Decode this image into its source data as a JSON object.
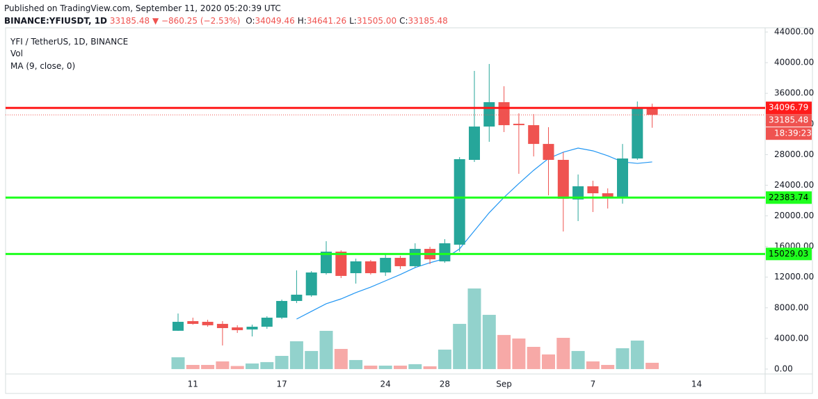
{
  "chart_data": {
    "type": "candlestick",
    "header": {
      "published": "Published on TradingView.com, September 11, 2020 05:20:39 UTC",
      "symbol": "BINANCE:YFIUSDT, 1D",
      "last": "33185.48",
      "change": "▼ −860.25 (−2.53%)",
      "ohlc": [
        {
          "label": "O:",
          "value": "34049.46"
        },
        {
          "label": "H:",
          "value": "34641.26"
        },
        {
          "label": "L:",
          "value": "31505.00"
        },
        {
          "label": "C:",
          "value": "33185.48"
        }
      ]
    },
    "categories": [
      null,
      "11",
      null,
      null,
      null,
      null,
      null,
      "17",
      null,
      null,
      null,
      null,
      null,
      null,
      "24",
      null,
      null,
      null,
      "28",
      null,
      null,
      null,
      "Sep",
      null,
      null,
      null,
      null,
      null,
      "7",
      null,
      null,
      null,
      null,
      null,
      null,
      "14"
    ],
    "series": [
      {
        "name": "YFI / TetherUS, 1D, BINANCE",
        "open": [
          5000,
          6260,
          6170,
          5900,
          5440,
          5170,
          5530,
          6710,
          8890,
          9620,
          12520,
          15330,
          12520,
          14060,
          12610,
          14520,
          13430,
          15690,
          14060,
          16240,
          27310,
          31660,
          34840,
          32020,
          31840,
          29390,
          27310,
          22140,
          23860,
          22950,
          22500,
          27490,
          34049.46,
          null,
          null,
          null
        ],
        "high": [
          7260,
          6710,
          6440,
          6260,
          5720,
          5800,
          6900,
          9070,
          12880,
          12790,
          16690,
          15510,
          14420,
          14240,
          14970,
          14790,
          16420,
          15970,
          16960,
          27670,
          38920,
          39830,
          36920,
          33380,
          33290,
          31570,
          28310,
          25400,
          24590,
          23590,
          29390,
          34930,
          34641.26,
          null,
          null,
          null
        ],
        "low": [
          4990,
          5800,
          5530,
          3080,
          4720,
          4260,
          5260,
          6530,
          8620,
          9430,
          12340,
          11880,
          11160,
          12340,
          12160,
          13060,
          13250,
          13700,
          13880,
          15330,
          27040,
          29670,
          30940,
          25490,
          27760,
          22680,
          17960,
          19320,
          20500,
          20960,
          21590,
          27310,
          31505,
          null,
          null,
          null
        ],
        "close": [
          6170,
          5900,
          5720,
          5350,
          5080,
          5530,
          6710,
          8890,
          9710,
          12610,
          15330,
          12160,
          14060,
          12520,
          14520,
          13430,
          15690,
          14330,
          16420,
          27400,
          31660,
          34840,
          31840,
          31840,
          29390,
          27310,
          22230,
          23860,
          22950,
          22500,
          27490,
          34100,
          33185.48,
          null,
          null,
          null
        ]
      },
      {
        "name": "Vol",
        "values": [
          1540,
          540,
          540,
          1000,
          400,
          730,
          910,
          1720,
          3630,
          2360,
          4990,
          2630,
          1180,
          450,
          450,
          450,
          640,
          360,
          2540,
          5900,
          10520,
          7080,
          4450,
          3990,
          2900,
          1910,
          4080,
          2360,
          1000,
          540,
          2720,
          3720,
          820,
          null,
          null,
          null
        ]
      },
      {
        "name": "MA (9, close, 0)",
        "color": "#2196f3",
        "values": [
          null,
          null,
          null,
          null,
          null,
          null,
          null,
          null,
          6530,
          7530,
          8530,
          9160,
          9980,
          10700,
          11520,
          12340,
          13250,
          13880,
          14420,
          15690,
          18050,
          20410,
          22410,
          24220,
          25950,
          27490,
          28310,
          28850,
          28490,
          27850,
          27040,
          26850,
          27040,
          null,
          null,
          null
        ]
      }
    ],
    "up_color": "#26a69a",
    "down_color": "#ef5350",
    "volume_up_color": "rgba(38,166,154,0.5)",
    "volume_down_color": "rgba(239,83,80,0.5)",
    "hlines": [
      {
        "value": 34096.79,
        "color": "#ff1a1a"
      },
      {
        "value": 22383.74,
        "color": "#1eff1e"
      },
      {
        "value": 15029.03,
        "color": "#1eff1e"
      }
    ],
    "countdown": "18:39:23",
    "ylim": [
      -640,
      44550
    ],
    "yticks": [
      {
        "value": 0,
        "label": "0.00"
      },
      {
        "value": 4000,
        "label": "4000.00"
      },
      {
        "value": 8000,
        "label": "8000.00"
      },
      {
        "value": 12000,
        "label": "12000.00"
      },
      {
        "value": 16000,
        "label": "16000.00"
      },
      {
        "value": 20000,
        "label": "20000.00"
      },
      {
        "value": 24000,
        "label": "24000.00"
      },
      {
        "value": 28000,
        "label": "28000.00"
      },
      {
        "value": 32000,
        "label": "32000.00"
      },
      {
        "value": 36000,
        "label": "36000.00"
      },
      {
        "value": 40000,
        "label": "40000.00"
      },
      {
        "value": 44000,
        "label": "44000.00"
      }
    ]
  }
}
